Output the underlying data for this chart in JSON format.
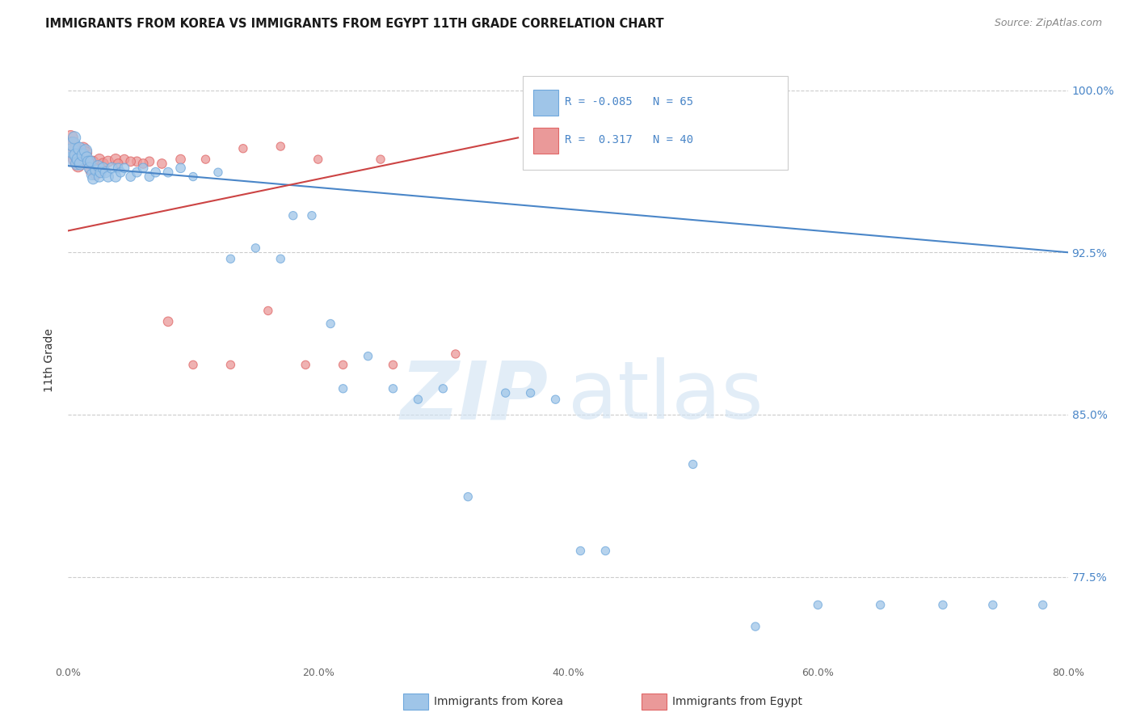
{
  "title": "IMMIGRANTS FROM KOREA VS IMMIGRANTS FROM EGYPT 11TH GRADE CORRELATION CHART",
  "source": "Source: ZipAtlas.com",
  "ylabel": "11th Grade",
  "ytick_labels": [
    "100.0%",
    "92.5%",
    "85.0%",
    "77.5%"
  ],
  "ytick_values": [
    1.0,
    0.925,
    0.85,
    0.775
  ],
  "xtick_labels": [
    "0.0%",
    "20.0%",
    "40.0%",
    "60.0%",
    "80.0%"
  ],
  "xtick_values": [
    0.0,
    0.2,
    0.4,
    0.6,
    0.8
  ],
  "xmin": 0.0,
  "xmax": 0.8,
  "ymin": 0.735,
  "ymax": 1.015,
  "korea_color": "#9fc5e8",
  "egypt_color": "#ea9999",
  "korea_edge_color": "#6fa8dc",
  "egypt_edge_color": "#e06666",
  "korea_line_color": "#4a86c8",
  "egypt_line_color": "#cc4444",
  "watermark_zip_color": "#c9daf8",
  "watermark_atlas_color": "#b4c7e7",
  "legend_text_color": "#4a86c8",
  "right_axis_color": "#4a86c8",
  "title_color": "#1a1a1a",
  "source_color": "#888888",
  "grid_color": "#cccccc",
  "korea_r": "-0.085",
  "korea_n": "65",
  "egypt_r": "0.317",
  "egypt_n": "40",
  "korea_trend_x": [
    0.0,
    0.8
  ],
  "korea_trend_y": [
    0.965,
    0.925
  ],
  "egypt_trend_x": [
    0.0,
    0.36
  ],
  "egypt_trend_y": [
    0.935,
    0.978
  ],
  "korea_scatter_x": [
    0.002,
    0.003,
    0.004,
    0.005,
    0.006,
    0.007,
    0.008,
    0.009,
    0.01,
    0.012,
    0.014,
    0.015,
    0.016,
    0.017,
    0.018,
    0.019,
    0.02,
    0.022,
    0.024,
    0.025,
    0.026,
    0.028,
    0.03,
    0.032,
    0.035,
    0.038,
    0.04,
    0.042,
    0.045,
    0.05,
    0.055,
    0.06,
    0.065,
    0.07,
    0.08,
    0.09,
    0.1,
    0.12,
    0.13,
    0.15,
    0.17,
    0.18,
    0.195,
    0.21,
    0.22,
    0.24,
    0.26,
    0.28,
    0.3,
    0.32,
    0.35,
    0.37,
    0.39,
    0.41,
    0.43,
    0.5,
    0.55,
    0.6,
    0.65,
    0.7,
    0.74,
    0.78
  ],
  "korea_scatter_y": [
    0.968,
    0.972,
    0.975,
    0.978,
    0.97,
    0.966,
    0.968,
    0.973,
    0.966,
    0.97,
    0.972,
    0.969,
    0.967,
    0.964,
    0.967,
    0.961,
    0.959,
    0.963,
    0.965,
    0.96,
    0.962,
    0.964,
    0.962,
    0.96,
    0.964,
    0.96,
    0.964,
    0.962,
    0.964,
    0.96,
    0.962,
    0.964,
    0.96,
    0.962,
    0.962,
    0.964,
    0.96,
    0.962,
    0.922,
    0.927,
    0.922,
    0.942,
    0.942,
    0.892,
    0.862,
    0.877,
    0.862,
    0.857,
    0.862,
    0.812,
    0.86,
    0.86,
    0.857,
    0.787,
    0.787,
    0.827,
    0.752,
    0.762,
    0.762,
    0.762,
    0.762,
    0.762
  ],
  "egypt_scatter_x": [
    0.002,
    0.003,
    0.004,
    0.005,
    0.006,
    0.007,
    0.008,
    0.009,
    0.01,
    0.012,
    0.014,
    0.016,
    0.018,
    0.02,
    0.022,
    0.025,
    0.028,
    0.032,
    0.038,
    0.045,
    0.055,
    0.065,
    0.08,
    0.1,
    0.13,
    0.16,
    0.19,
    0.22,
    0.26,
    0.31,
    0.04,
    0.05,
    0.06,
    0.075,
    0.09,
    0.11,
    0.14,
    0.17,
    0.2,
    0.25
  ],
  "egypt_scatter_y": [
    0.978,
    0.975,
    0.971,
    0.968,
    0.973,
    0.969,
    0.965,
    0.971,
    0.967,
    0.973,
    0.971,
    0.967,
    0.963,
    0.967,
    0.961,
    0.968,
    0.966,
    0.967,
    0.968,
    0.968,
    0.967,
    0.967,
    0.893,
    0.873,
    0.873,
    0.898,
    0.873,
    0.873,
    0.873,
    0.878,
    0.966,
    0.967,
    0.966,
    0.966,
    0.968,
    0.968,
    0.973,
    0.974,
    0.968,
    0.968
  ],
  "bottom_legend_korea": "Immigrants from Korea",
  "bottom_legend_egypt": "Immigrants from Egypt"
}
